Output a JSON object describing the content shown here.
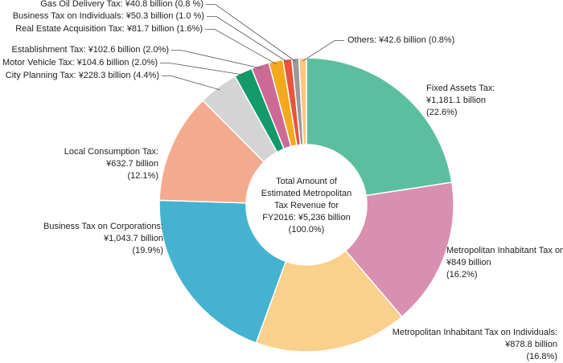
{
  "chart_data": {
    "type": "donut",
    "categories": [
      "Fixed Assets Tax:",
      "Metropolitan Inhabitant Tax on Corporations:",
      "Metropolitan Inhabitant Tax on Individuals:",
      "Business Tax on Corporations:",
      "Local Consumption Tax:",
      "City Planning Tax:",
      "Motor Vehicle Tax:",
      "Establishment Tax:",
      "Real Estate Acquisition Tax:",
      "Business Tax on Individuals:",
      "Gas Oil Delivery Tax:",
      "Others:"
    ],
    "values": [
      1181.1,
      849,
      878.8,
      1043.7,
      632.7,
      228.3,
      104.6,
      102.6,
      81.7,
      50.3,
      40.8,
      42.6
    ],
    "value_labels": [
      "¥1,181.1 billion",
      "¥849 billion",
      "¥878.8 billion",
      "¥1,043.7 billion",
      "¥632.7 billion",
      "¥228.3 billion",
      "¥104.6 billion",
      "¥102.6 billion",
      "¥81.7 billion",
      "¥50.3 billion",
      "¥40.8 billion",
      "¥42.6 billion"
    ],
    "percents": [
      22.6,
      16.2,
      16.8,
      19.9,
      12.1,
      4.4,
      2.0,
      2.0,
      1.6,
      1.0,
      0.8,
      0.8
    ],
    "percent_labels": [
      "(22.6%)",
      "(16.2%)",
      "(16.8%)",
      "(19.9%)",
      "(12.1%)",
      "(4.4%)",
      "(2.0%)",
      "(2.0%)",
      "(1.6%)",
      "(1.0 %)",
      "(0.8 %)",
      "(0.8%)"
    ],
    "colors": [
      "#5bbf9f",
      "#d98fb0",
      "#f9d08c",
      "#45b3d0",
      "#f4aa8e",
      "#d4d4d4",
      "#149a6a",
      "#cc6a95",
      "#f4a91c",
      "#e8543c",
      "#9a9a9a",
      "#fbc680"
    ],
    "center_text": [
      "Total Amount of",
      "Estimated Metropolitan",
      "Tax Revenue for",
      "FY2016: ¥5,236 billion",
      "(100.0%)"
    ]
  }
}
